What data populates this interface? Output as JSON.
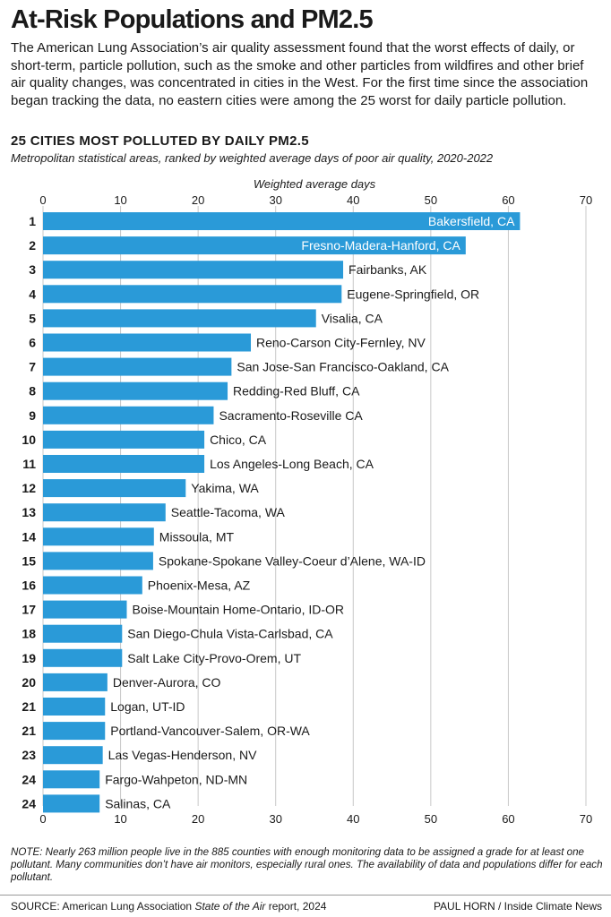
{
  "header": {
    "title": "At-Risk Populations and PM2.5",
    "intro": "The American Lung Association’s air quality assessment found that the worst effects of daily, or short-term, particle pollution, such as the smoke and other particles from wildfires and other brief air quality changes, was concentrated in cities in the West. For the first time since the association began tracking the data, no eastern cities were among the 25 worst for daily particle pollution."
  },
  "chart_data": {
    "type": "bar",
    "orientation": "horizontal",
    "title": "25 CITIES MOST POLLUTED BY DAILY PM2.5",
    "subtitle": "Metropolitan statistical areas, ranked by weighted average days of poor air quality, 2020-2022",
    "xlabel": "Weighted average days",
    "xlim": [
      0,
      70
    ],
    "xticks": [
      0,
      10,
      20,
      30,
      40,
      50,
      60,
      70
    ],
    "grid": true,
    "bar_color": "#2a9ad8",
    "ranks": [
      "1",
      "2",
      "3",
      "4",
      "5",
      "6",
      "7",
      "8",
      "9",
      "10",
      "11",
      "12",
      "13",
      "14",
      "15",
      "16",
      "17",
      "18",
      "19",
      "20",
      "21",
      "21",
      "23",
      "24",
      "24"
    ],
    "categories": [
      "Bakersfield, CA",
      "Fresno-Madera-Hanford, CA",
      "Fairbanks, AK",
      "Eugene-Springfield, OR",
      "Visalia, CA",
      "Reno-Carson City-Fernley, NV",
      "San Jose-San Francisco-Oakland, CA",
      "Redding-Red Bluff, CA",
      "Sacramento-Roseville CA",
      "Chico, CA",
      "Los Angeles-Long Beach, CA",
      "Yakima, WA",
      "Seattle-Tacoma, WA",
      "Missoula, MT",
      "Spokane-Spokane Valley-Coeur d’Alene, WA-ID",
      "Phoenix-Mesa, AZ",
      "Boise-Mountain Home-Ontario, ID-OR",
      "San Diego-Chula Vista-Carlsbad, CA",
      "Salt Lake City-Provo-Orem, UT",
      "Denver-Aurora, CO",
      "Logan, UT-ID",
      "Portland-Vancouver-Salem, OR-WA",
      "Las Vegas-Henderson, NV",
      "Fargo-Wahpeton, ND-MN",
      "Salinas, CA"
    ],
    "values": [
      61.5,
      54.5,
      38.7,
      38.5,
      35.2,
      26.8,
      24.3,
      23.8,
      22.0,
      20.8,
      20.8,
      18.4,
      15.8,
      14.3,
      14.2,
      12.8,
      10.8,
      10.2,
      10.2,
      8.3,
      8.0,
      8.0,
      7.7,
      7.3,
      7.3
    ],
    "labels_inside": [
      true,
      true,
      false,
      false,
      false,
      false,
      false,
      false,
      false,
      false,
      false,
      false,
      false,
      false,
      false,
      false,
      false,
      false,
      false,
      false,
      false,
      false,
      false,
      false,
      false
    ]
  },
  "footer": {
    "note": "NOTE: Nearly 263 million people live in the 885 counties with enough monitoring data to be assigned a grade for at least one pollutant. Many communities don’t have air monitors, especially rural ones. The availability of data and populations differ for each pollutant.",
    "source_prefix": "SOURCE: American Lung Association ",
    "source_report": "State of the Air",
    "source_suffix": " report, 2024",
    "credit": "PAUL HORN / Inside Climate News"
  }
}
